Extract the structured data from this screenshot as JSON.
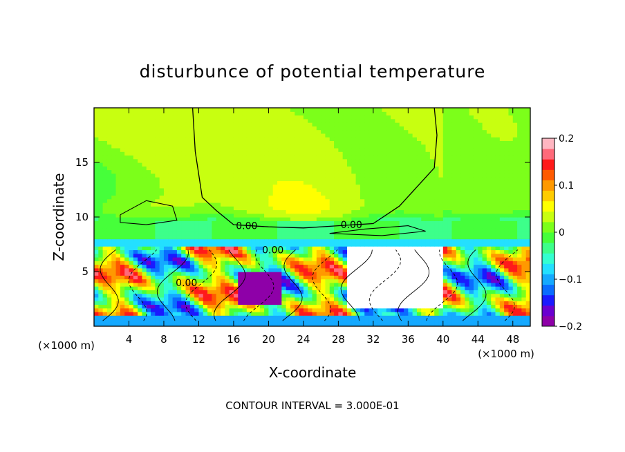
{
  "chart_data": {
    "type": "heatmap",
    "title": "disturbunce of potential temperature",
    "xlabel": "X-coordinate",
    "ylabel": "Z-coordinate",
    "x_unit_left": "(×1000 m)",
    "x_unit_right": "(×1000 m)",
    "footer": "CONTOUR INTERVAL = 3.000E-01",
    "xlim": [
      0,
      50
    ],
    "ylim": [
      0,
      20
    ],
    "x_ticks": [
      4,
      8,
      12,
      16,
      20,
      24,
      28,
      32,
      36,
      40,
      44,
      48
    ],
    "y_ticks": [
      5,
      10,
      15
    ],
    "colorbar": {
      "range": [
        -0.2,
        0.2
      ],
      "tick_values": [
        0.2,
        0.1,
        0,
        -0.1,
        -0.2
      ],
      "tick_labels": [
        "0.2",
        "0.1",
        "0",
        "−0.1",
        "−0.2"
      ],
      "colors": [
        "#8e00a8",
        "#6a00d0",
        "#1a1aff",
        "#0a6cff",
        "#15a9ff",
        "#23e0ff",
        "#34ffd0",
        "#3dff8a",
        "#46ff3a",
        "#7cff1a",
        "#c8ff10",
        "#ffff00",
        "#ffcc00",
        "#ff9900",
        "#ff5a00",
        "#ff1a1a",
        "#ff6a7a",
        "#ffb6c1"
      ]
    },
    "contour_labels": [
      {
        "text": "0.00",
        "x": 17.5,
        "z": 9.2
      },
      {
        "text": "0.00",
        "x": 29.5,
        "z": 9.3
      },
      {
        "text": "0.00",
        "x": 20.5,
        "z": 7.0
      },
      {
        "text": "0.00",
        "x": 10.6,
        "z": 4.0
      }
    ],
    "zero_contour_upper": [
      [
        11.3,
        20
      ],
      [
        11.6,
        16
      ],
      [
        12.4,
        11.8
      ],
      [
        14,
        10.6
      ],
      [
        16,
        9.3
      ],
      [
        20,
        9.1
      ],
      [
        24,
        9.0
      ],
      [
        28,
        9.2
      ],
      [
        32,
        9.4
      ],
      [
        35,
        11
      ],
      [
        39,
        14.5
      ],
      [
        39.3,
        17.5
      ],
      [
        39,
        20
      ]
    ]
  }
}
